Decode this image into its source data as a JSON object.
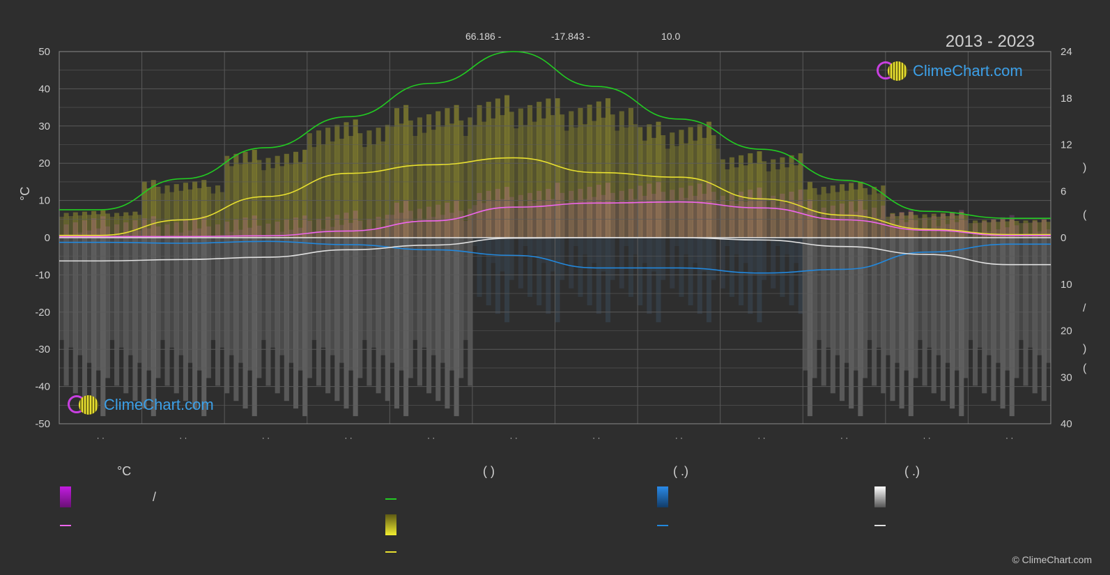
{
  "header": {
    "latitude": "66.186 -",
    "longitude": "-17.843 -",
    "elevation": "10.0",
    "period": "2013 - 2023"
  },
  "logo_text": "ClimeChart.com",
  "copyright": "© ClimeChart.com",
  "axes": {
    "left_label": "°C",
    "left_ticks": [
      "50",
      "40",
      "30",
      "20",
      "10",
      "0",
      "-10",
      "-20",
      "-30",
      "-40",
      "-50"
    ],
    "right_top_ticks": [
      "24",
      "18",
      "12",
      "6",
      "0"
    ],
    "right_bottom_ticks": [
      "10",
      "20",
      "30",
      "40"
    ],
    "right_glyphs": [
      ")",
      "(",
      "/",
      ")",
      "("
    ],
    "month_ticks": [
      "· ·",
      "· ·",
      "· ·",
      "· ·",
      "· ·",
      "· ·",
      "· ·",
      "· ·",
      "· ·",
      "· ·",
      "· ·",
      "· ·"
    ]
  },
  "legend": {
    "col1": {
      "head": "°C",
      "row1_text": "/"
    },
    "col2": {
      "head": "(          )"
    },
    "col3": {
      "head": "(   .)"
    },
    "col4": {
      "head": "(   .)"
    }
  },
  "colors": {
    "background": "#2e2e2e",
    "daylight": "#22cc22",
    "sunshine": "#e8e030",
    "temperature": "#ee66ee",
    "precipitation": "#2288dd",
    "snow": "#e0e0e0",
    "grid": "#5a5a5a"
  },
  "chart_data": {
    "type": "line",
    "x": [
      1,
      2,
      3,
      4,
      5,
      6,
      7,
      8,
      9,
      10,
      11,
      12
    ],
    "ylim": [
      -50,
      50
    ],
    "y2_top_lim": [
      0,
      24
    ],
    "y2_bottom_lim": [
      0,
      40
    ],
    "series": [
      {
        "axis": "right_top",
        "values": [
          3.6,
          7.6,
          11.6,
          15.6,
          19.9,
          24,
          19.5,
          15.3,
          11.4,
          7.4,
          3.4,
          2.5
        ]
      },
      {
        "axis": "right_top",
        "values": [
          0.3,
          2.3,
          5.3,
          8.3,
          9.4,
          10.3,
          8.4,
          7.8,
          5.0,
          2.9,
          1.1,
          0.4
        ]
      },
      {
        "axis": "left",
        "values": [
          0.3,
          0.3,
          0.5,
          1.8,
          4.5,
          8.2,
          9.3,
          9.6,
          8.0,
          4.8,
          2.0,
          0.6
        ]
      },
      {
        "axis": "right_bottom",
        "values": [
          1.0,
          1.2,
          0.8,
          1.5,
          2.6,
          3.8,
          6.5,
          6.5,
          7.6,
          6.8,
          3.1,
          1.4
        ]
      },
      {
        "axis": "right_bottom",
        "values": [
          5.0,
          4.7,
          4.2,
          2.6,
          1.6,
          0.1,
          0.0,
          0.0,
          0.5,
          1.9,
          3.6,
          5.8
        ]
      }
    ],
    "band_upper_sunshine": [
      3.6,
      7.6,
      11.6,
      15.6,
      17.5,
      18.8,
      18.4,
      15.3,
      11.4,
      7.4,
      3.4,
      2.5
    ]
  }
}
